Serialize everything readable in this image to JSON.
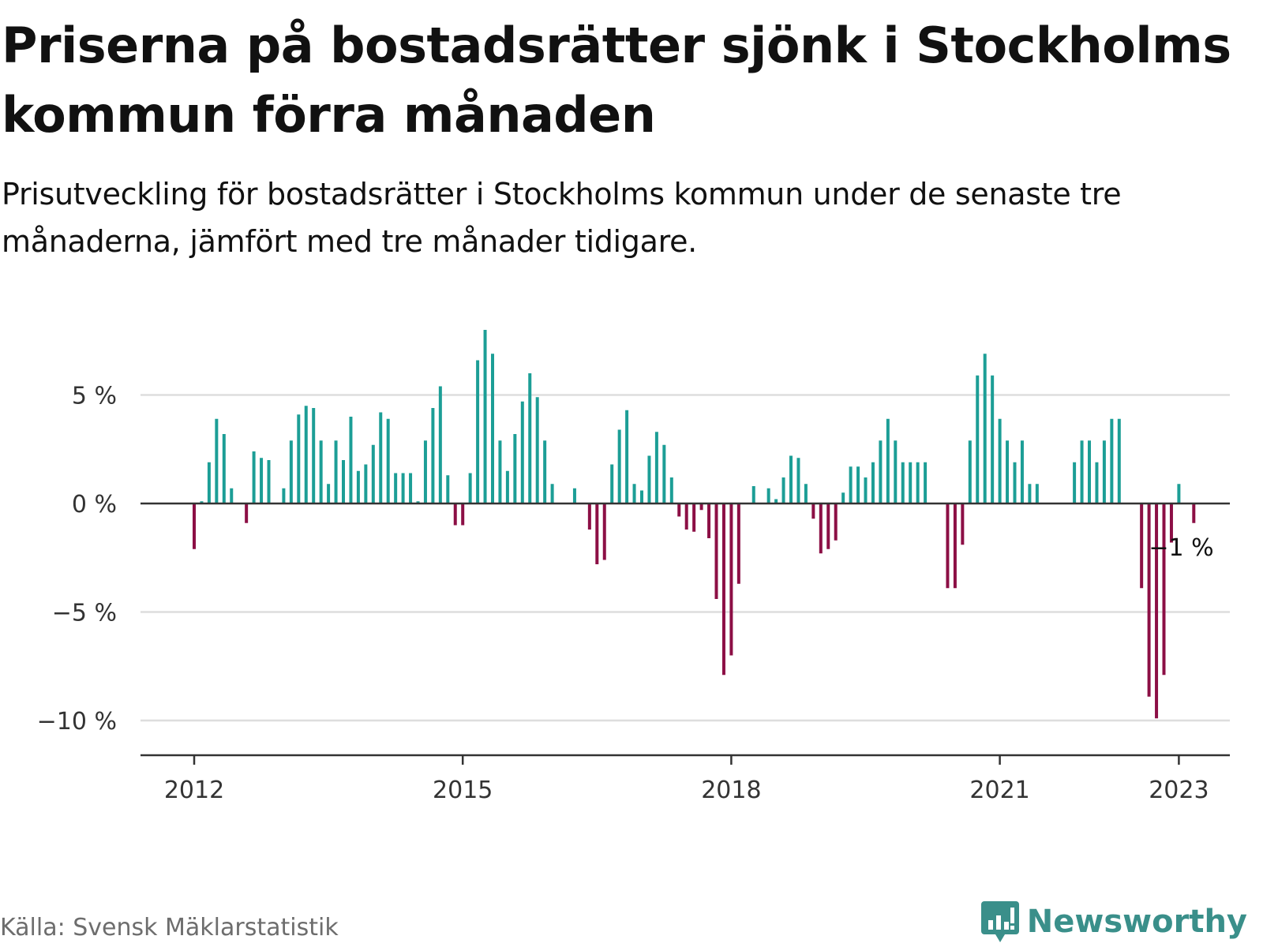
{
  "header": {
    "title": "Priserna på bostadsrätter sjönk i Stockholms kommun förra månaden",
    "subtitle": "Prisutveckling för bostadsrätter i Stockholms kommun under de senaste tre månaderna, jämfört med tre månader tidigare."
  },
  "footer": {
    "source": "Källa: Svensk Mäklarstatistik",
    "brand": "Newsworthy",
    "brand_icon": "bar-chart-speech-bubble-icon"
  },
  "colors": {
    "positive": "#1c9e96",
    "negative": "#8c0f45",
    "grid": "#dddddd",
    "axis": "#333333",
    "brand": "#3a8f8a"
  },
  "chart_data": {
    "type": "bar",
    "ylim": [
      -11.5,
      8.5
    ],
    "y_ticks": [
      {
        "value": 5,
        "label": "5 %"
      },
      {
        "value": 0,
        "label": "0 %"
      },
      {
        "value": -5,
        "label": "−5 %"
      },
      {
        "value": -10,
        "label": "−10 %"
      }
    ],
    "x_ticks": [
      {
        "date": "2012-01",
        "label": "2012"
      },
      {
        "date": "2015-01",
        "label": "2015"
      },
      {
        "date": "2018-01",
        "label": "2018"
      },
      {
        "date": "2021-01",
        "label": "2021"
      },
      {
        "date": "2023-01",
        "label": "2023"
      }
    ],
    "annotation": {
      "date": "2023-01",
      "label": "−1 %"
    },
    "series": [
      {
        "values": [
          {
            "date": "2012-01",
            "value": -2.1
          },
          {
            "date": "2012-02",
            "value": 0.1
          },
          {
            "date": "2012-03",
            "value": 1.9
          },
          {
            "date": "2012-04",
            "value": 3.9
          },
          {
            "date": "2012-05",
            "value": 3.2
          },
          {
            "date": "2012-06",
            "value": 0.7
          },
          {
            "date": "2012-07",
            "value": 0
          },
          {
            "date": "2012-08",
            "value": -0.9
          },
          {
            "date": "2012-09",
            "value": 2.4
          },
          {
            "date": "2012-10",
            "value": 2.1
          },
          {
            "date": "2012-11",
            "value": 2.0
          },
          {
            "date": "2012-12",
            "value": 0
          },
          {
            "date": "2013-01",
            "value": 0.7
          },
          {
            "date": "2013-02",
            "value": 2.9
          },
          {
            "date": "2013-03",
            "value": 4.1
          },
          {
            "date": "2013-04",
            "value": 4.5
          },
          {
            "date": "2013-05",
            "value": 4.4
          },
          {
            "date": "2013-06",
            "value": 2.9
          },
          {
            "date": "2013-07",
            "value": 0.9
          },
          {
            "date": "2013-08",
            "value": 2.9
          },
          {
            "date": "2013-09",
            "value": 2.0
          },
          {
            "date": "2013-10",
            "value": 4.0
          },
          {
            "date": "2013-11",
            "value": 1.5
          },
          {
            "date": "2013-12",
            "value": 1.8
          },
          {
            "date": "2014-01",
            "value": 2.7
          },
          {
            "date": "2014-02",
            "value": 4.2
          },
          {
            "date": "2014-03",
            "value": 3.9
          },
          {
            "date": "2014-04",
            "value": 1.4
          },
          {
            "date": "2014-05",
            "value": 1.4
          },
          {
            "date": "2014-06",
            "value": 1.4
          },
          {
            "date": "2014-07",
            "value": 0.1
          },
          {
            "date": "2014-08",
            "value": 2.9
          },
          {
            "date": "2014-09",
            "value": 4.4
          },
          {
            "date": "2014-10",
            "value": 5.4
          },
          {
            "date": "2014-11",
            "value": 1.3
          },
          {
            "date": "2014-12",
            "value": -1.0
          },
          {
            "date": "2015-01",
            "value": -1.0
          },
          {
            "date": "2015-02",
            "value": 1.4
          },
          {
            "date": "2015-03",
            "value": 6.6
          },
          {
            "date": "2015-04",
            "value": 8.0
          },
          {
            "date": "2015-05",
            "value": 6.9
          },
          {
            "date": "2015-06",
            "value": 2.9
          },
          {
            "date": "2015-07",
            "value": 1.5
          },
          {
            "date": "2015-08",
            "value": 3.2
          },
          {
            "date": "2015-09",
            "value": 4.7
          },
          {
            "date": "2015-10",
            "value": 6.0
          },
          {
            "date": "2015-11",
            "value": 4.9
          },
          {
            "date": "2015-12",
            "value": 2.9
          },
          {
            "date": "2016-01",
            "value": 0.9
          },
          {
            "date": "2016-02",
            "value": 0
          },
          {
            "date": "2016-03",
            "value": 0
          },
          {
            "date": "2016-04",
            "value": 0.7
          },
          {
            "date": "2016-05",
            "value": 0
          },
          {
            "date": "2016-06",
            "value": -1.2
          },
          {
            "date": "2016-07",
            "value": -2.8
          },
          {
            "date": "2016-08",
            "value": -2.6
          },
          {
            "date": "2016-09",
            "value": 1.8
          },
          {
            "date": "2016-10",
            "value": 3.4
          },
          {
            "date": "2016-11",
            "value": 4.3
          },
          {
            "date": "2016-12",
            "value": 0.9
          },
          {
            "date": "2017-01",
            "value": 0.6
          },
          {
            "date": "2017-02",
            "value": 2.2
          },
          {
            "date": "2017-03",
            "value": 3.3
          },
          {
            "date": "2017-04",
            "value": 2.7
          },
          {
            "date": "2017-05",
            "value": 1.2
          },
          {
            "date": "2017-06",
            "value": -0.6
          },
          {
            "date": "2017-07",
            "value": -1.2
          },
          {
            "date": "2017-08",
            "value": -1.3
          },
          {
            "date": "2017-09",
            "value": -0.3
          },
          {
            "date": "2017-10",
            "value": -1.6
          },
          {
            "date": "2017-11",
            "value": -4.4
          },
          {
            "date": "2017-12",
            "value": -7.9
          },
          {
            "date": "2018-01",
            "value": -7.0
          },
          {
            "date": "2018-02",
            "value": -3.7
          },
          {
            "date": "2018-03",
            "value": 0
          },
          {
            "date": "2018-04",
            "value": 0.8
          },
          {
            "date": "2018-05",
            "value": 0
          },
          {
            "date": "2018-06",
            "value": 0.7
          },
          {
            "date": "2018-07",
            "value": 0.2
          },
          {
            "date": "2018-08",
            "value": 1.2
          },
          {
            "date": "2018-09",
            "value": 2.2
          },
          {
            "date": "2018-10",
            "value": 2.1
          },
          {
            "date": "2018-11",
            "value": 0.9
          },
          {
            "date": "2018-12",
            "value": -0.7
          },
          {
            "date": "2019-01",
            "value": -2.3
          },
          {
            "date": "2019-02",
            "value": -2.1
          },
          {
            "date": "2019-03",
            "value": -1.7
          },
          {
            "date": "2019-04",
            "value": 0.5
          },
          {
            "date": "2019-05",
            "value": 1.7
          },
          {
            "date": "2019-06",
            "value": 1.7
          },
          {
            "date": "2019-07",
            "value": 1.2
          },
          {
            "date": "2019-08",
            "value": 1.9
          },
          {
            "date": "2019-09",
            "value": 2.9
          },
          {
            "date": "2019-10",
            "value": 3.9
          },
          {
            "date": "2019-11",
            "value": 2.9
          },
          {
            "date": "2019-12",
            "value": 1.9
          },
          {
            "date": "2020-01",
            "value": 1.9
          },
          {
            "date": "2020-02",
            "value": 1.9
          },
          {
            "date": "2020-03",
            "value": 1.9
          },
          {
            "date": "2020-04",
            "value": 0
          },
          {
            "date": "2020-05",
            "value": 0
          },
          {
            "date": "2020-06",
            "value": -3.9
          },
          {
            "date": "2020-07",
            "value": -3.9
          },
          {
            "date": "2020-08",
            "value": -1.9
          },
          {
            "date": "2020-09",
            "value": 2.9
          },
          {
            "date": "2020-10",
            "value": 5.9
          },
          {
            "date": "2020-11",
            "value": 6.9
          },
          {
            "date": "2020-12",
            "value": 5.9
          },
          {
            "date": "2021-01",
            "value": 3.9
          },
          {
            "date": "2021-02",
            "value": 2.9
          },
          {
            "date": "2021-03",
            "value": 1.9
          },
          {
            "date": "2021-04",
            "value": 2.9
          },
          {
            "date": "2021-05",
            "value": 0.9
          },
          {
            "date": "2021-06",
            "value": 0.9
          },
          {
            "date": "2021-07",
            "value": 0
          },
          {
            "date": "2021-08",
            "value": 0
          },
          {
            "date": "2021-09",
            "value": 0
          },
          {
            "date": "2021-10",
            "value": 0
          },
          {
            "date": "2021-11",
            "value": 1.9
          },
          {
            "date": "2021-12",
            "value": 2.9
          },
          {
            "date": "2022-01",
            "value": 2.9
          },
          {
            "date": "2022-02",
            "value": 1.9
          },
          {
            "date": "2022-03",
            "value": 2.9
          },
          {
            "date": "2022-04",
            "value": 3.9
          },
          {
            "date": "2022-05",
            "value": 3.9
          },
          {
            "date": "2022-06",
            "value": 0
          },
          {
            "date": "2022-07",
            "value": 0
          },
          {
            "date": "2022-08",
            "value": -3.9
          },
          {
            "date": "2022-09",
            "value": -8.9
          },
          {
            "date": "2022-10",
            "value": -9.9
          },
          {
            "date": "2022-11",
            "value": -7.9
          },
          {
            "date": "2022-12",
            "value": -1.8
          },
          {
            "date": "2023-01",
            "value": 0.9
          },
          {
            "date": "2023-02",
            "value": 0
          },
          {
            "date": "2023-03",
            "value": -0.9
          }
        ]
      }
    ]
  }
}
